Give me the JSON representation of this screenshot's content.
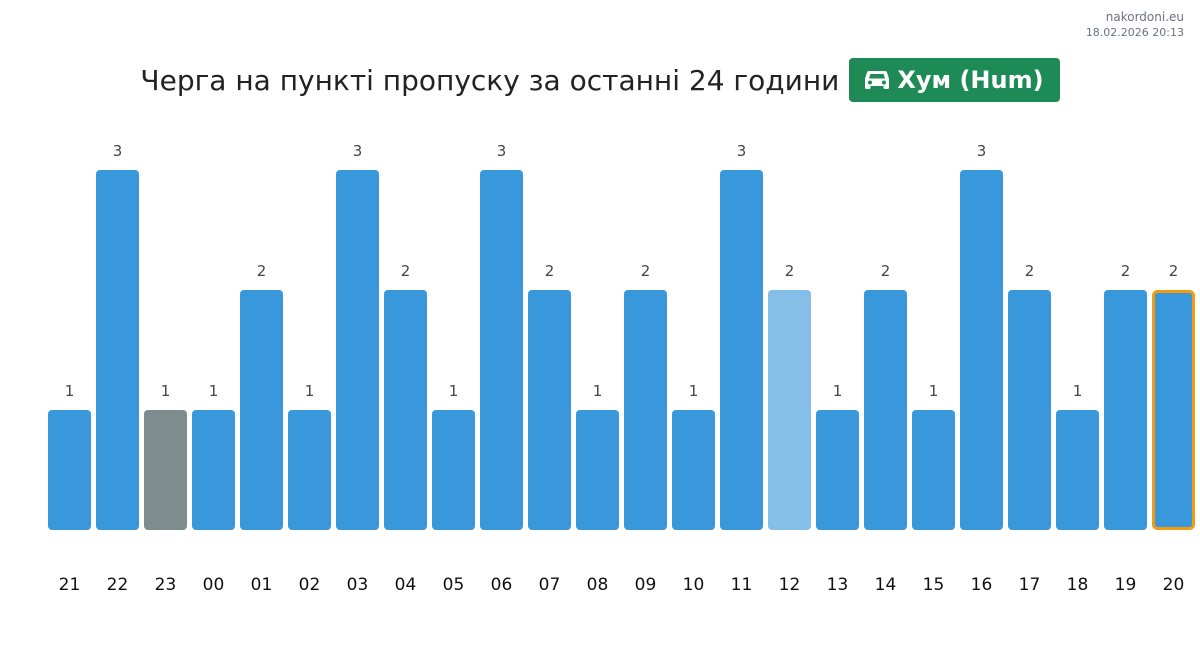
{
  "site": {
    "domain": "nakordoni.eu",
    "timestamp": "18.02.2026 20:13"
  },
  "header": {
    "title": "Черга на пункті пропуску за останні 24 години",
    "badge_icon": "car-icon",
    "badge_label": "Хум (Hum)"
  },
  "colors": {
    "bar": "#3898DB",
    "bar_gray": "#7F8C8D",
    "bar_light": "#85BFE8",
    "highlight_border": "#F39C12",
    "badge": "#1E8A56"
  },
  "chart_data": {
    "type": "bar",
    "title": "Черга на пункті пропуску за останні 24 години",
    "xlabel": "",
    "ylabel": "",
    "ylim": [
      0,
      3
    ],
    "grid": false,
    "categories": [
      "21",
      "22",
      "23",
      "00",
      "01",
      "02",
      "03",
      "04",
      "05",
      "06",
      "07",
      "08",
      "09",
      "10",
      "11",
      "12",
      "13",
      "14",
      "15",
      "16",
      "17",
      "18",
      "19",
      "20"
    ],
    "values": [
      1,
      3,
      1,
      1,
      2,
      1,
      3,
      2,
      1,
      3,
      2,
      1,
      2,
      1,
      3,
      2,
      1,
      2,
      1,
      3,
      2,
      1,
      2,
      2
    ],
    "gray_category": "23",
    "light_category": "12",
    "highlight_category": "20"
  }
}
